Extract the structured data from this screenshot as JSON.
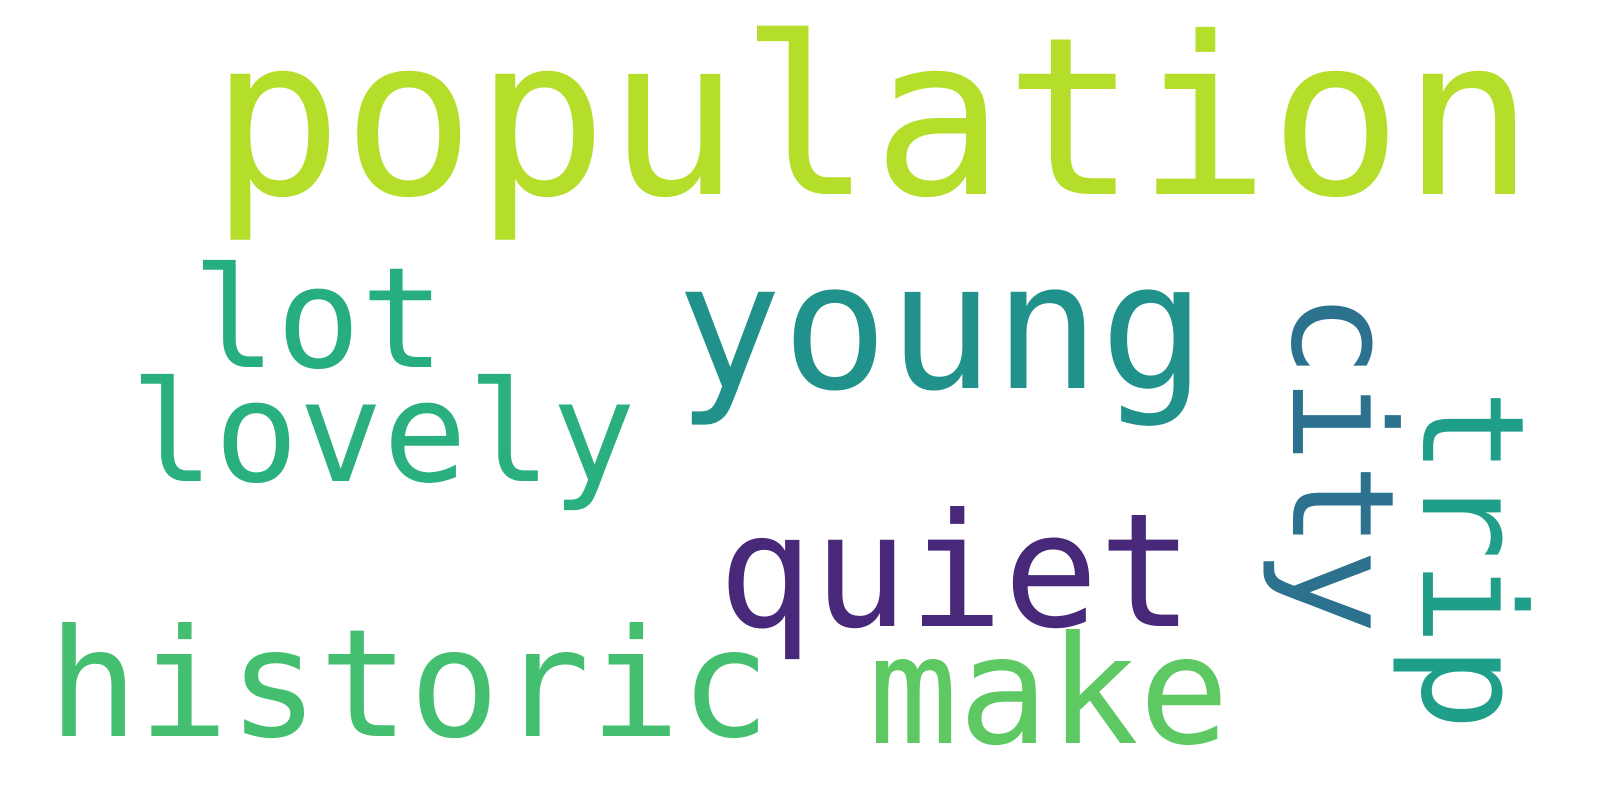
{
  "words": {
    "population": "population",
    "young": "young",
    "lot": "lot",
    "lovely": "lovely",
    "quiet": "quiet",
    "historic": "historic",
    "make": "make",
    "city": "city",
    "trip": "trip"
  },
  "colors": {
    "background": "#ffffff",
    "population": "#b5de2b",
    "young": "#21918c",
    "lot": "#26ad81",
    "lovely": "#2ab07f",
    "quiet": "#482878",
    "historic": "#44bf70",
    "make": "#5ec962",
    "city": "#2c728e",
    "trip": "#1f9e89"
  }
}
